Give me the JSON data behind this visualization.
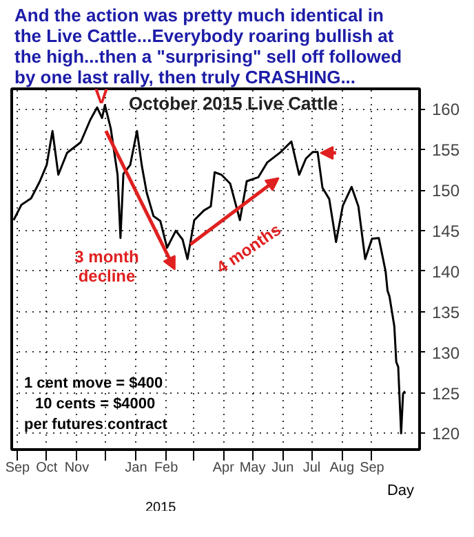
{
  "chart_data": {
    "type": "line",
    "title": "And the action was pretty much identical in\nthe Live Cattle...Everybody roaring bullish at\nthe high...then a \"surprising\" sell off followed\nby one last rally, then truly CRASHING...",
    "subtitle": "October 2015 Live Cattle",
    "x": [
      "2014-08-28",
      "2014-09-05",
      "2014-09-15",
      "2014-09-24",
      "2014-10-01",
      "2014-10-07",
      "2014-10-13",
      "2014-10-22",
      "2014-11-05",
      "2014-11-15",
      "2014-11-22",
      "2014-11-27",
      "2014-11-30",
      "2014-12-06",
      "2014-12-13",
      "2014-12-16",
      "2014-12-19",
      "2014-12-26",
      "2015-01-02",
      "2015-01-07",
      "2015-01-12",
      "2015-01-19",
      "2015-01-26",
      "2015-02-02",
      "2015-02-11",
      "2015-02-18",
      "2015-02-23",
      "2015-03-02",
      "2015-03-12",
      "2015-03-19",
      "2015-03-23",
      "2015-03-30",
      "2015-04-08",
      "2015-04-18",
      "2015-04-25",
      "2015-05-07",
      "2015-05-16",
      "2015-05-30",
      "2015-06-10",
      "2015-06-18",
      "2015-06-25",
      "2015-07-02",
      "2015-07-07",
      "2015-07-12",
      "2015-07-19",
      "2015-07-26",
      "2015-08-02",
      "2015-08-11",
      "2015-08-18",
      "2015-08-25",
      "2015-09-01",
      "2015-09-08",
      "2015-09-15",
      "2015-09-17",
      "2015-09-19",
      "2015-09-24",
      "2015-09-26",
      "2015-09-28",
      "2015-10-01",
      "2015-10-03",
      "2015-10-05"
    ],
    "series": [
      {
        "color": "#000000",
        "values": [
          146.3,
          148.2,
          149.0,
          151.1,
          153.1,
          157.3,
          151.9,
          154.6,
          155.9,
          158.7,
          160.2,
          158.9,
          160.5,
          157.6,
          151.9,
          144.1,
          152.0,
          153.1,
          157.3,
          153.0,
          149.7,
          146.8,
          146.2,
          142.9,
          145.0,
          143.9,
          141.5,
          146.3,
          147.5,
          148.0,
          152.2,
          151.9,
          150.8,
          146.3,
          151.1,
          151.6,
          153.4,
          154.7,
          156.0,
          151.9,
          153.9,
          154.7,
          154.7,
          150.3,
          148.9,
          143.6,
          148.1,
          150.4,
          148.0,
          141.5,
          144.0,
          144.1,
          140.0,
          137.6,
          136.9,
          133.2,
          128.8,
          128.2,
          120.0,
          124.9,
          125.2
        ]
      }
    ],
    "xlim": [
      "2014-08-26",
      "2015-10-20"
    ],
    "xticks": [
      {
        "value": "2014-09-01",
        "label": "Sep"
      },
      {
        "value": "2014-10-01",
        "label": "Oct"
      },
      {
        "value": "2014-11-01",
        "label": "Nov"
      },
      {
        "value": "2014-12-01",
        "label": null
      },
      {
        "value": "2015-01-01",
        "label": "Jan"
      },
      {
        "value": "2015-02-01",
        "label": "Feb"
      },
      {
        "value": "2015-03-01",
        "label": null
      },
      {
        "value": "2015-04-01",
        "label": "Apr"
      },
      {
        "value": "2015-05-01",
        "label": "May"
      },
      {
        "value": "2015-06-01",
        "label": "Jun"
      },
      {
        "value": "2015-07-01",
        "label": "Jul"
      },
      {
        "value": "2015-08-01",
        "label": "Aug"
      },
      {
        "value": "2015-09-01",
        "label": "Sep"
      }
    ],
    "ylim": [
      118,
      162.5
    ],
    "yticks": [
      120,
      125,
      130,
      135,
      140,
      145,
      150,
      155,
      160
    ],
    "grid": true,
    "marker": "none",
    "line_style": "solid",
    "annotations": [
      "V",
      "3 month\ndecline",
      "4 months",
      "1 cent move = $400",
      "10 cents = $4000",
      "per futures contract",
      "2015",
      "Day"
    ]
  }
}
